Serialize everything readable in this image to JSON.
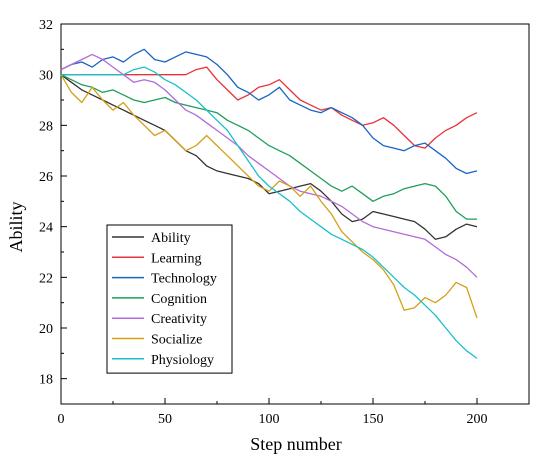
{
  "chart_data": {
    "type": "line",
    "title": "",
    "xlabel": "Step number",
    "ylabel": "Ability",
    "xlim": [
      0,
      225
    ],
    "ylim": [
      17,
      32
    ],
    "xticks": [
      0,
      50,
      100,
      150,
      200
    ],
    "yticks": [
      18,
      20,
      22,
      24,
      26,
      28,
      30,
      32
    ],
    "grid": false,
    "legend_position": "bottom-left",
    "series": [
      {
        "name": "Ability",
        "color": "#333333",
        "x": [
          0,
          5,
          10,
          15,
          20,
          25,
          30,
          35,
          40,
          45,
          50,
          55,
          60,
          65,
          70,
          75,
          80,
          85,
          90,
          95,
          100,
          105,
          110,
          115,
          120,
          125,
          130,
          135,
          140,
          145,
          150,
          155,
          160,
          165,
          170,
          175,
          180,
          185,
          190,
          195,
          200
        ],
        "y": [
          30,
          29.7,
          29.4,
          29.2,
          29.0,
          28.8,
          28.6,
          28.4,
          28.2,
          28.0,
          27.8,
          27.4,
          27.0,
          26.8,
          26.4,
          26.2,
          26.1,
          26.0,
          25.9,
          25.7,
          25.3,
          25.4,
          25.5,
          25.6,
          25.7,
          25.4,
          25.0,
          24.5,
          24.2,
          24.3,
          24.6,
          24.5,
          24.4,
          24.3,
          24.2,
          23.9,
          23.5,
          23.6,
          23.9,
          24.1,
          24.0
        ]
      },
      {
        "name": "Learning",
        "color": "#e8333a",
        "x": [
          0,
          10,
          20,
          30,
          40,
          50,
          60,
          65,
          70,
          75,
          80,
          85,
          90,
          95,
          100,
          105,
          110,
          115,
          120,
          125,
          130,
          135,
          140,
          145,
          150,
          155,
          160,
          165,
          170,
          175,
          180,
          185,
          190,
          195,
          200
        ],
        "y": [
          30,
          30,
          30,
          30,
          30,
          30,
          30,
          30.2,
          30.3,
          29.8,
          29.4,
          29.0,
          29.2,
          29.5,
          29.6,
          29.8,
          29.4,
          29.0,
          28.8,
          28.6,
          28.7,
          28.4,
          28.2,
          28.0,
          28.1,
          28.3,
          28.0,
          27.6,
          27.2,
          27.1,
          27.5,
          27.8,
          28.0,
          28.3,
          28.5
        ]
      },
      {
        "name": "Technology",
        "color": "#1764c4",
        "x": [
          0,
          5,
          10,
          15,
          20,
          25,
          30,
          35,
          40,
          45,
          50,
          55,
          60,
          65,
          70,
          75,
          80,
          85,
          90,
          95,
          100,
          105,
          110,
          115,
          120,
          125,
          130,
          135,
          140,
          145,
          150,
          155,
          160,
          165,
          170,
          175,
          180,
          185,
          190,
          195,
          200
        ],
        "y": [
          30.2,
          30.4,
          30.5,
          30.3,
          30.6,
          30.7,
          30.5,
          30.8,
          31.0,
          30.6,
          30.5,
          30.7,
          30.9,
          30.8,
          30.7,
          30.4,
          30.0,
          29.5,
          29.3,
          29.0,
          29.2,
          29.5,
          29.0,
          28.8,
          28.6,
          28.5,
          28.7,
          28.5,
          28.3,
          28.0,
          27.5,
          27.2,
          27.1,
          27.0,
          27.2,
          27.3,
          27.0,
          26.7,
          26.3,
          26.1,
          26.2
        ]
      },
      {
        "name": "Cognition",
        "color": "#1e9e5a",
        "x": [
          0,
          5,
          10,
          15,
          20,
          25,
          30,
          35,
          40,
          45,
          50,
          55,
          60,
          65,
          70,
          75,
          80,
          85,
          90,
          95,
          100,
          105,
          110,
          115,
          120,
          125,
          130,
          135,
          140,
          145,
          150,
          155,
          160,
          165,
          170,
          175,
          180,
          185,
          190,
          195,
          200
        ],
        "y": [
          30,
          29.8,
          29.6,
          29.5,
          29.3,
          29.4,
          29.2,
          29.0,
          28.9,
          29.0,
          29.1,
          28.9,
          28.8,
          28.7,
          28.6,
          28.5,
          28.2,
          28.0,
          27.8,
          27.5,
          27.2,
          27.0,
          26.8,
          26.5,
          26.2,
          25.9,
          25.6,
          25.4,
          25.6,
          25.3,
          25.0,
          25.2,
          25.3,
          25.5,
          25.6,
          25.7,
          25.6,
          25.2,
          24.6,
          24.3,
          24.3
        ]
      },
      {
        "name": "Creativity",
        "color": "#b36bd8",
        "x": [
          0,
          5,
          10,
          15,
          20,
          25,
          30,
          35,
          40,
          45,
          50,
          55,
          60,
          65,
          70,
          75,
          80,
          85,
          90,
          95,
          100,
          105,
          110,
          115,
          120,
          125,
          130,
          135,
          140,
          145,
          150,
          155,
          160,
          165,
          170,
          175,
          180,
          185,
          190,
          195,
          200
        ],
        "y": [
          30.2,
          30.4,
          30.6,
          30.8,
          30.6,
          30.3,
          30.0,
          29.7,
          29.8,
          29.7,
          29.4,
          29.0,
          28.6,
          28.4,
          28.1,
          27.8,
          27.5,
          27.2,
          26.8,
          26.5,
          26.2,
          25.9,
          25.6,
          25.4,
          25.3,
          25.2,
          25.0,
          24.8,
          24.5,
          24.2,
          24.0,
          23.9,
          23.8,
          23.7,
          23.6,
          23.5,
          23.2,
          22.9,
          22.7,
          22.4,
          22.0
        ]
      },
      {
        "name": "Socialize",
        "color": "#d4a017",
        "x": [
          0,
          5,
          10,
          15,
          20,
          25,
          30,
          35,
          40,
          45,
          50,
          55,
          60,
          65,
          70,
          75,
          80,
          85,
          90,
          95,
          100,
          105,
          110,
          115,
          120,
          125,
          130,
          135,
          140,
          145,
          150,
          155,
          160,
          165,
          170,
          175,
          180,
          185,
          190,
          195,
          200
        ],
        "y": [
          30,
          29.3,
          28.9,
          29.5,
          29.0,
          28.6,
          28.9,
          28.4,
          28.0,
          27.6,
          27.8,
          27.4,
          27.0,
          27.2,
          27.6,
          27.2,
          26.8,
          26.4,
          26.0,
          25.6,
          25.4,
          25.8,
          25.6,
          25.2,
          25.6,
          25.0,
          24.5,
          23.8,
          23.4,
          23.0,
          22.7,
          22.3,
          21.7,
          20.7,
          20.8,
          21.2,
          21.0,
          21.3,
          21.8,
          21.6,
          20.4
        ]
      },
      {
        "name": "Physiology",
        "color": "#19c0c9",
        "x": [
          0,
          10,
          20,
          30,
          35,
          40,
          45,
          50,
          55,
          60,
          65,
          70,
          75,
          80,
          85,
          90,
          95,
          100,
          105,
          110,
          115,
          120,
          125,
          130,
          135,
          140,
          145,
          150,
          155,
          160,
          165,
          170,
          175,
          180,
          185,
          190,
          195,
          200
        ],
        "y": [
          30,
          30,
          30,
          30,
          30.2,
          30.3,
          30.1,
          29.8,
          29.6,
          29.3,
          29.0,
          28.6,
          28.2,
          27.8,
          27.2,
          26.6,
          26.0,
          25.6,
          25.3,
          25.0,
          24.6,
          24.3,
          24.0,
          23.7,
          23.5,
          23.3,
          23.1,
          22.8,
          22.4,
          22.0,
          21.6,
          21.3,
          20.9,
          20.5,
          20.0,
          19.5,
          19.1,
          18.8
        ]
      }
    ]
  }
}
